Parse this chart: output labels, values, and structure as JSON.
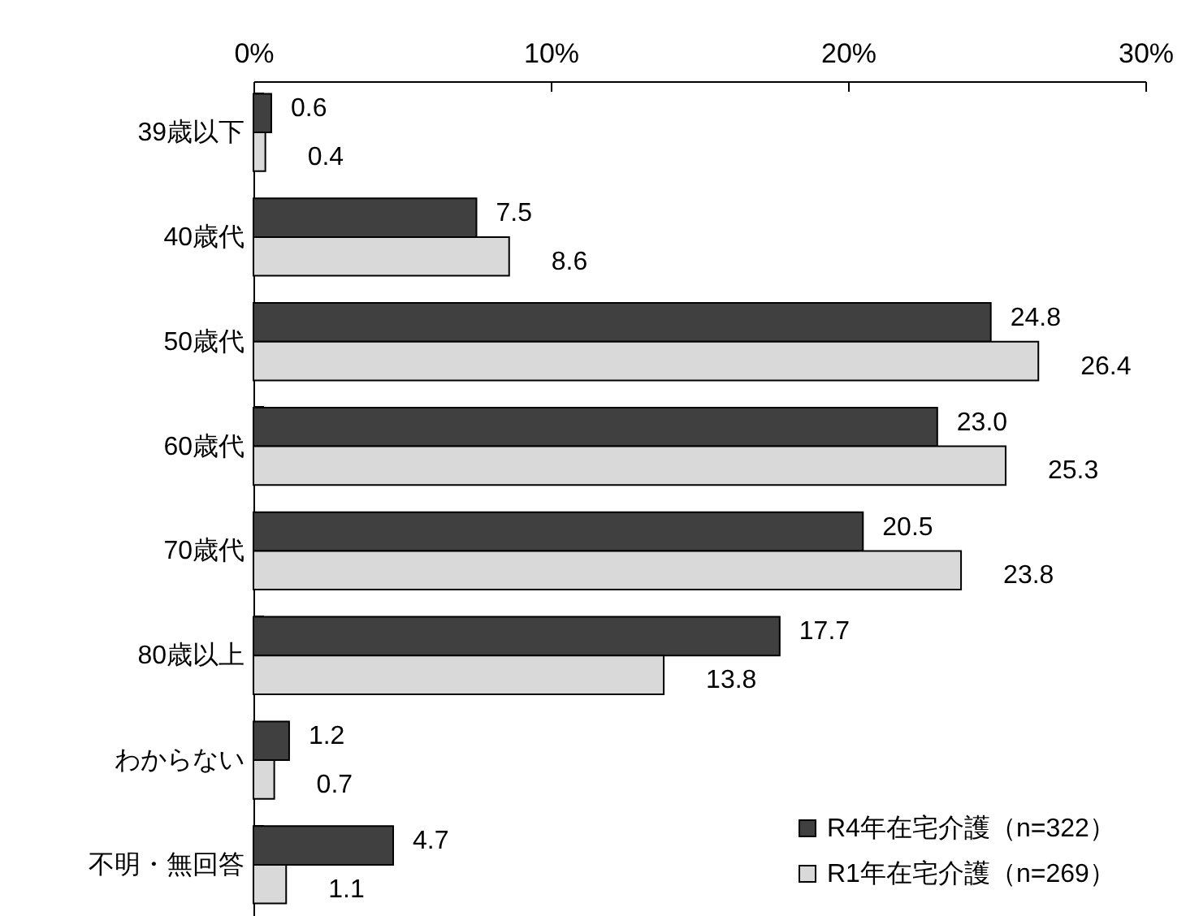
{
  "chart_data": {
    "type": "bar",
    "orientation": "horizontal",
    "categories": [
      "39歳以下",
      "40歳代",
      "50歳代",
      "60歳代",
      "70歳代",
      "80歳以上",
      "わからない",
      "不明・無回答"
    ],
    "series": [
      {
        "name": "R4年在宅介護（n=322）",
        "color": "#404040",
        "values": [
          0.6,
          7.5,
          24.8,
          23.0,
          20.5,
          17.7,
          1.2,
          4.7
        ],
        "value_labels": [
          "0.6",
          "7.5",
          "24.8",
          "23.0",
          "20.5",
          "17.7",
          "1.2",
          "4.7"
        ]
      },
      {
        "name": "R1年在宅介護（n=269）",
        "color": "#d9d9d9",
        "values": [
          0.4,
          8.6,
          26.4,
          25.3,
          23.8,
          13.8,
          0.7,
          1.1
        ],
        "value_labels": [
          "0.4",
          "8.6",
          "26.4",
          "25.3",
          "23.8",
          "13.8",
          "0.7",
          "1.1"
        ]
      }
    ],
    "xlim": [
      0,
      30
    ],
    "xticks": [
      {
        "value": 0,
        "label": "0%"
      },
      {
        "value": 10,
        "label": "10%"
      },
      {
        "value": 20,
        "label": "20%"
      },
      {
        "value": 30,
        "label": "30%"
      }
    ],
    "legend": "bottom right",
    "grid": false
  }
}
